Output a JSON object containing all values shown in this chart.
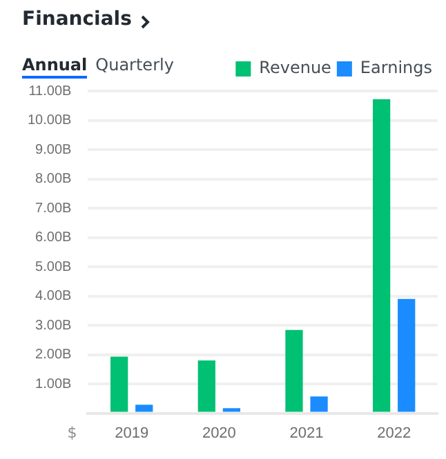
{
  "chart_data": {
    "type": "bar",
    "title": "Financials",
    "ylabel": "$",
    "annotations": [
      "Annual",
      "Quarterly"
    ],
    "categories": [
      "2019",
      "2020",
      "2021",
      "2022"
    ],
    "series": [
      {
        "name": "Revenue",
        "color": "#00c073",
        "values": [
          1.93,
          1.8,
          2.84,
          10.72
        ]
      },
      {
        "name": "Earnings",
        "color": "#1a8cff",
        "values": [
          0.29,
          0.17,
          0.57,
          3.9
        ]
      }
    ],
    "ylim": [
      0,
      11
    ],
    "yticks": [
      {
        "value": 0,
        "label": null
      },
      {
        "value": 1,
        "label": "1.00B"
      },
      {
        "value": 2,
        "label": "2.00B"
      },
      {
        "value": 3,
        "label": "3.00B"
      },
      {
        "value": 4,
        "label": "4.00B"
      },
      {
        "value": 5,
        "label": "5.00B"
      },
      {
        "value": 6,
        "label": "6.00B"
      },
      {
        "value": 7,
        "label": "7.00B"
      },
      {
        "value": 8,
        "label": "8.00B"
      },
      {
        "value": 9,
        "label": "9.00B"
      },
      {
        "value": 10,
        "label": "10.00B"
      },
      {
        "value": 11,
        "label": "11.00B"
      }
    ],
    "grid": "y",
    "legend": "top right"
  }
}
